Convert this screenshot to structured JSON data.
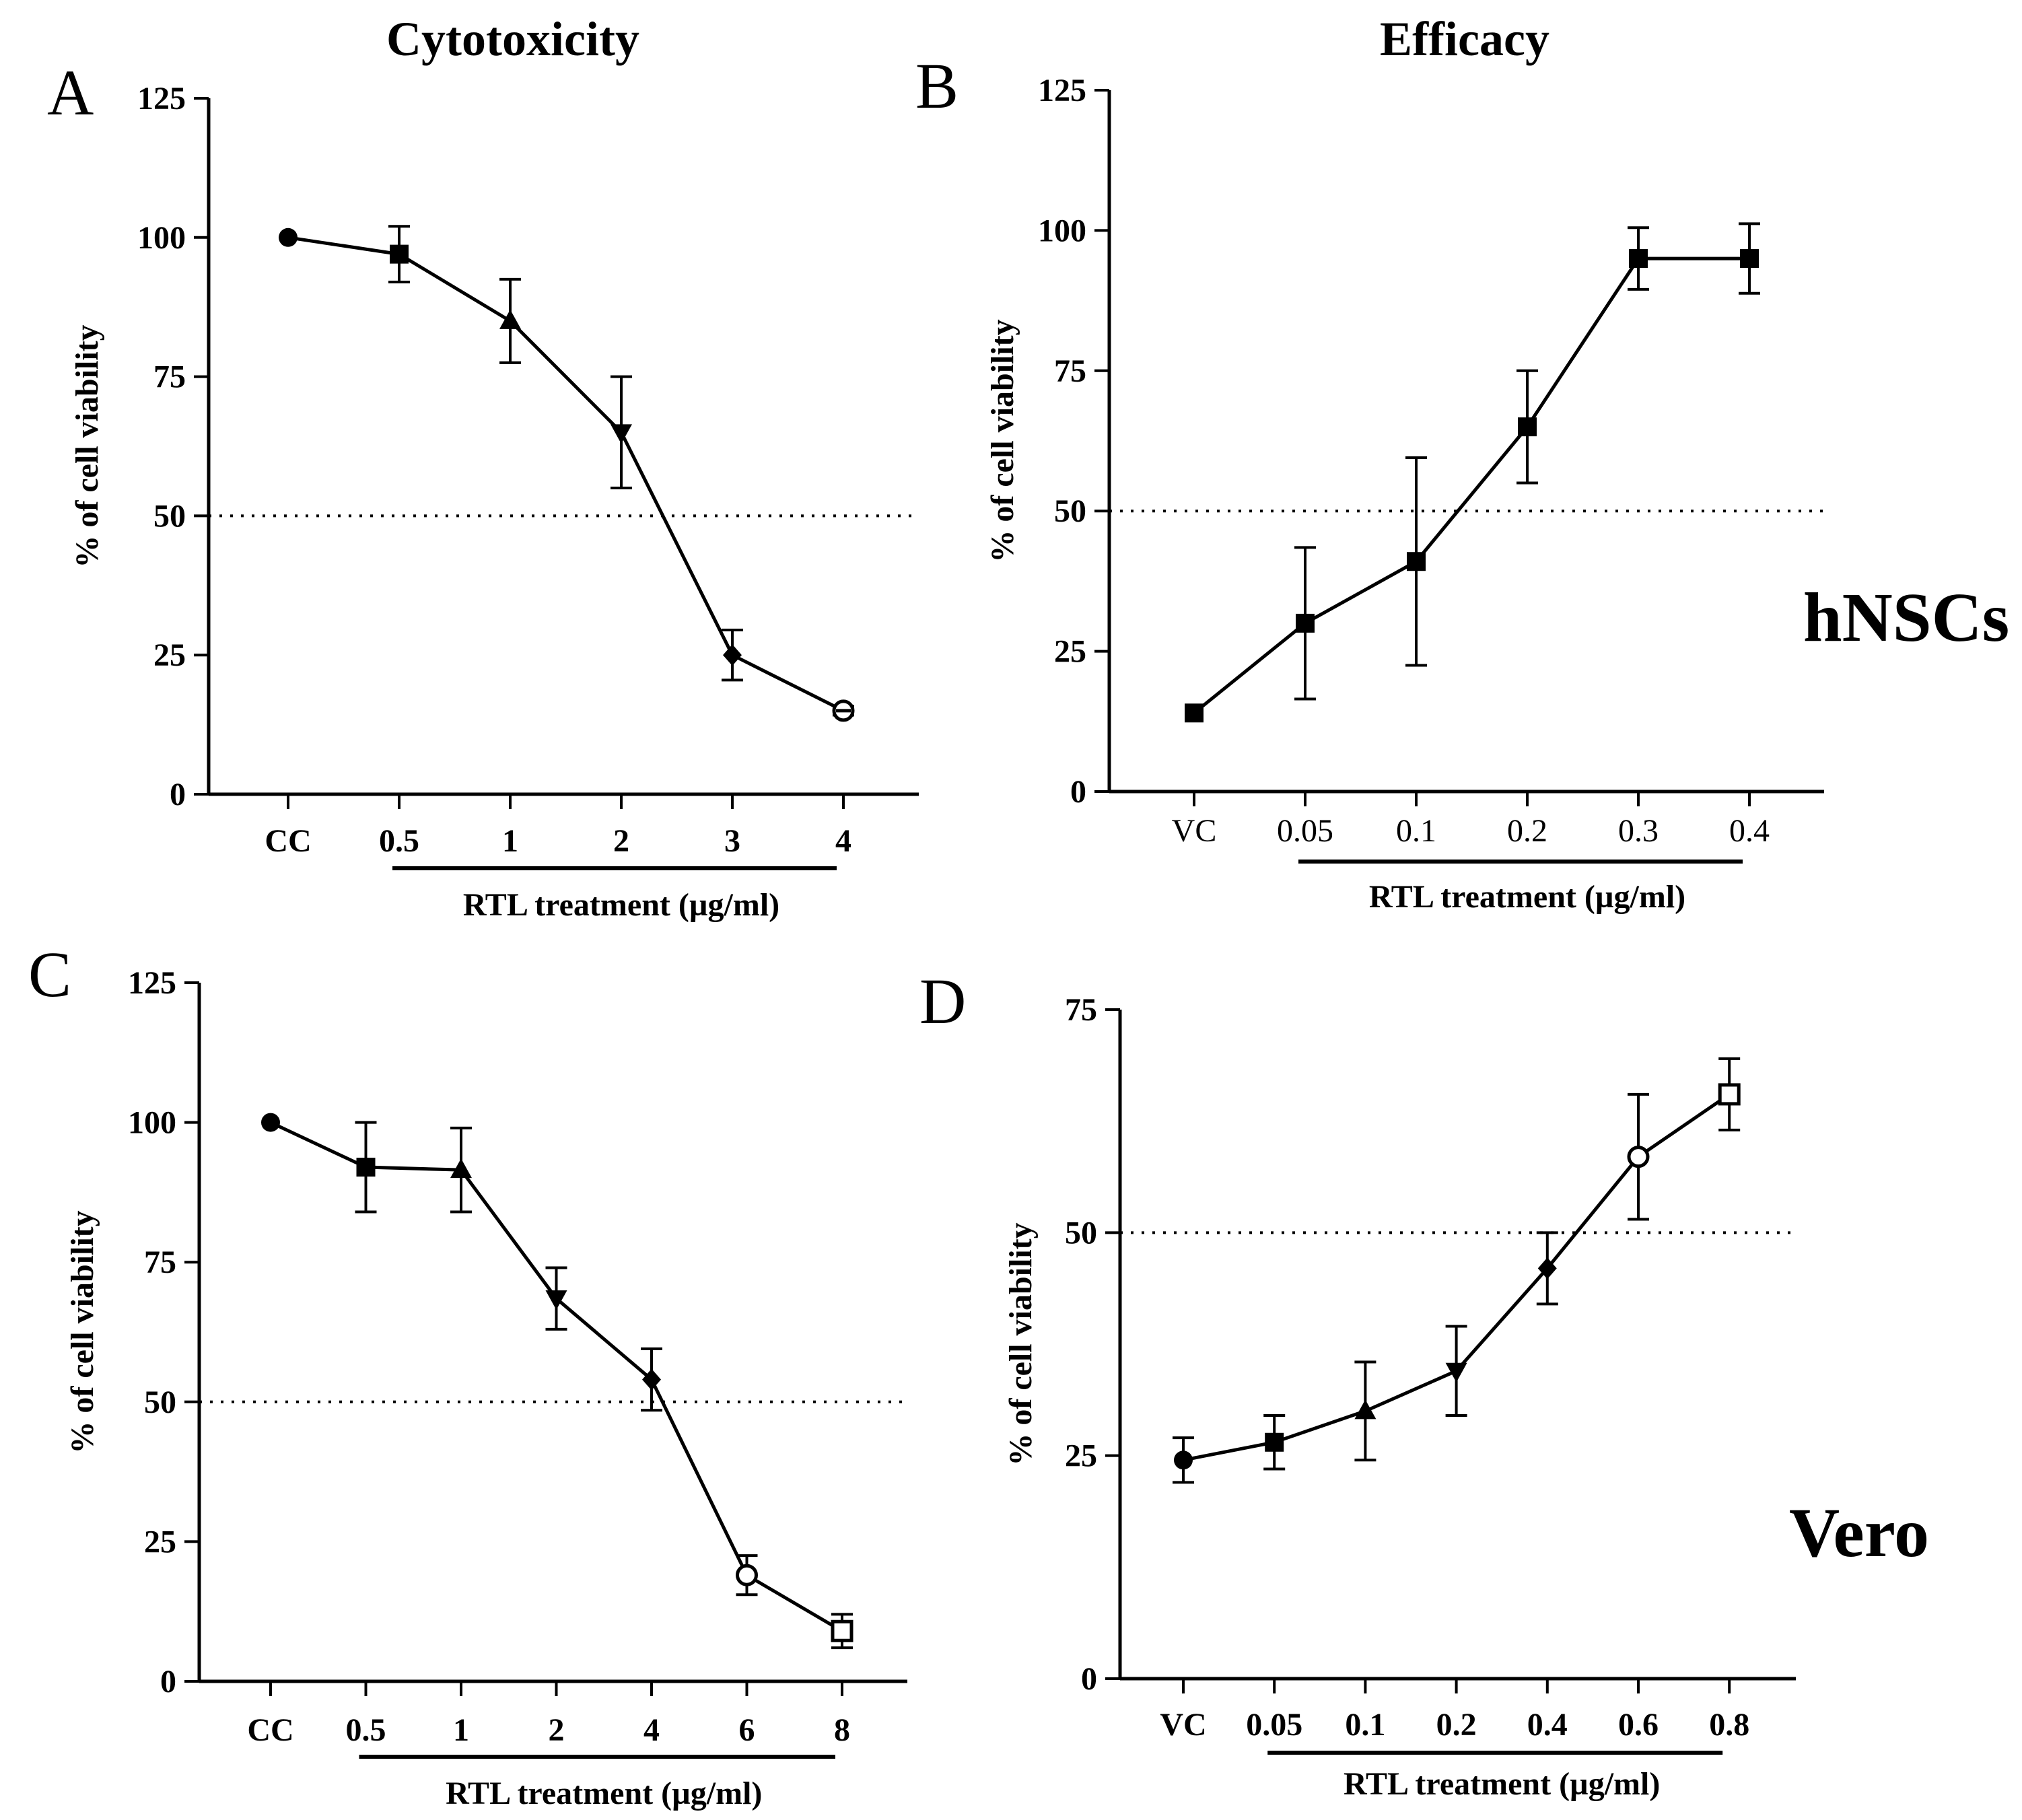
{
  "figure": {
    "column_titles": [
      "Cytotoxicity",
      "Efficacy"
    ],
    "row_labels": [
      "hNSCs",
      "Vero"
    ]
  },
  "chart_data": [
    {
      "panel": "A",
      "type": "line",
      "title": "",
      "xlabel": "RTL treatment (µg/ml)",
      "ylabel": "% of cell viability",
      "categories": [
        "CC",
        "0.5",
        "1",
        "2",
        "3",
        "4"
      ],
      "bold_ticks": true,
      "ylim": [
        0,
        125
      ],
      "yticks": [
        0,
        25,
        50,
        75,
        100,
        125
      ],
      "reference_line": 50,
      "bracket_range": [
        1,
        5
      ],
      "series": [
        {
          "name": "hNSCs cytotoxicity",
          "values": [
            100,
            97,
            85,
            65,
            25,
            15
          ],
          "errors": [
            0,
            5,
            7.5,
            10,
            4.5,
            0.8
          ],
          "markers": [
            "circle",
            "square",
            "triangle-up",
            "triangle-down",
            "diamond",
            "circle-cross"
          ]
        }
      ]
    },
    {
      "panel": "B",
      "type": "line",
      "title": "",
      "xlabel": "RTL treatment (µg/ml)",
      "ylabel": "% of cell viability",
      "categories": [
        "VC",
        "0.05",
        "0.1",
        "0.2",
        "0.3",
        "0.4"
      ],
      "bold_ticks": false,
      "ylim": [
        0,
        125
      ],
      "yticks": [
        0,
        25,
        50,
        75,
        100,
        125
      ],
      "reference_line": 50,
      "bracket_range": [
        1,
        5
      ],
      "series": [
        {
          "name": "hNSCs efficacy",
          "values": [
            14,
            30,
            41,
            65,
            95,
            95
          ],
          "errors": [
            0,
            13.5,
            18.5,
            10,
            5.5,
            6.2
          ],
          "markers": [
            "square",
            "square",
            "square",
            "square",
            "square",
            "square"
          ]
        }
      ]
    },
    {
      "panel": "C",
      "type": "line",
      "title": "",
      "xlabel": "RTL treatment (µg/ml)",
      "ylabel": "% of cell viability",
      "categories": [
        "CC",
        "0.5",
        "1",
        "2",
        "4",
        "6",
        "8"
      ],
      "bold_ticks": true,
      "ylim": [
        0,
        125
      ],
      "yticks": [
        0,
        25,
        50,
        75,
        100,
        125
      ],
      "reference_line": 50,
      "bracket_range": [
        1,
        6
      ],
      "series": [
        {
          "name": "Vero cytotoxicity",
          "values": [
            100,
            92,
            91.5,
            68.5,
            54,
            19,
            9
          ],
          "errors": [
            0,
            8,
            7.5,
            5.5,
            5.5,
            3.5,
            3
          ],
          "markers": [
            "circle",
            "square",
            "triangle-up",
            "triangle-down",
            "diamond",
            "circle-open",
            "square-open"
          ]
        }
      ]
    },
    {
      "panel": "D",
      "type": "line",
      "title": "",
      "xlabel": "RTL treatment (µg/ml)",
      "ylabel": "% of cell viability",
      "categories": [
        "VC",
        "0.05",
        "0.1",
        "0.2",
        "0.4",
        "0.6",
        "0.8"
      ],
      "bold_ticks": true,
      "ylim": [
        0,
        75
      ],
      "yticks": [
        0,
        25,
        50,
        75
      ],
      "reference_line": 50,
      "bracket_range": [
        1,
        6
      ],
      "series": [
        {
          "name": "Vero efficacy",
          "values": [
            24.5,
            26.5,
            30,
            34.5,
            46,
            58.5,
            65.5
          ],
          "errors": [
            2.5,
            3,
            5.5,
            5,
            4,
            7,
            4
          ],
          "markers": [
            "circle",
            "square",
            "triangle-up",
            "triangle-down",
            "diamond",
            "circle-open",
            "square-open"
          ]
        }
      ]
    }
  ]
}
